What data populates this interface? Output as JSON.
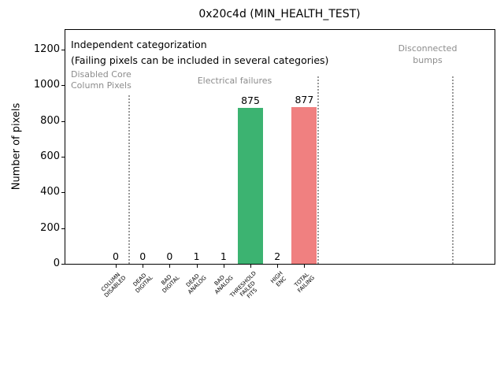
{
  "chart_data": {
    "type": "bar",
    "title": "0x20c4d (MIN_HEALTH_TEST)",
    "xlabel": "",
    "ylabel": "Number of pixels",
    "categories": [
      "COLUMN\nDISABLED",
      "DEAD\nDIGITAL",
      "BAD\nDIGITAL",
      "DEAD\nANALOG",
      "BAD\nANALOG",
      "THRESHOLD\nFAILED\nFITS",
      "HIGH\nENC",
      "TOTAL\nFAILING"
    ],
    "values": [
      0,
      0,
      0,
      1,
      1,
      875,
      2,
      877
    ],
    "value_labels": [
      "0",
      "0",
      "0",
      "1",
      "1",
      "875",
      "2",
      "877"
    ],
    "bar_colors": [
      null,
      null,
      null,
      null,
      null,
      "#3cb371",
      null,
      "#f08080"
    ],
    "default_bar_color": "#999999",
    "yticks": [
      0,
      200,
      400,
      600,
      800,
      1000,
      1200
    ],
    "ylim": [
      0,
      1315
    ],
    "grid": false,
    "legend": null,
    "separators": {
      "style": "dotted",
      "color": "#999999",
      "positions": [
        0.5,
        7.5,
        12.5
      ]
    },
    "annotations": {
      "independent": {
        "text": "Independent categorization",
        "color": "#000000"
      },
      "multi_note": {
        "text": "(Failing pixels can be included in several categories)",
        "color": "#000000"
      },
      "disabled_core": {
        "text": "Disabled Core\nColumn Pixels",
        "color": "#8c8c8c"
      },
      "electrical": {
        "text": "Electrical failures",
        "color": "#8c8c8c"
      },
      "disconnected": {
        "text": "Disconnected\nbumps",
        "color": "#8c8c8c"
      }
    }
  }
}
